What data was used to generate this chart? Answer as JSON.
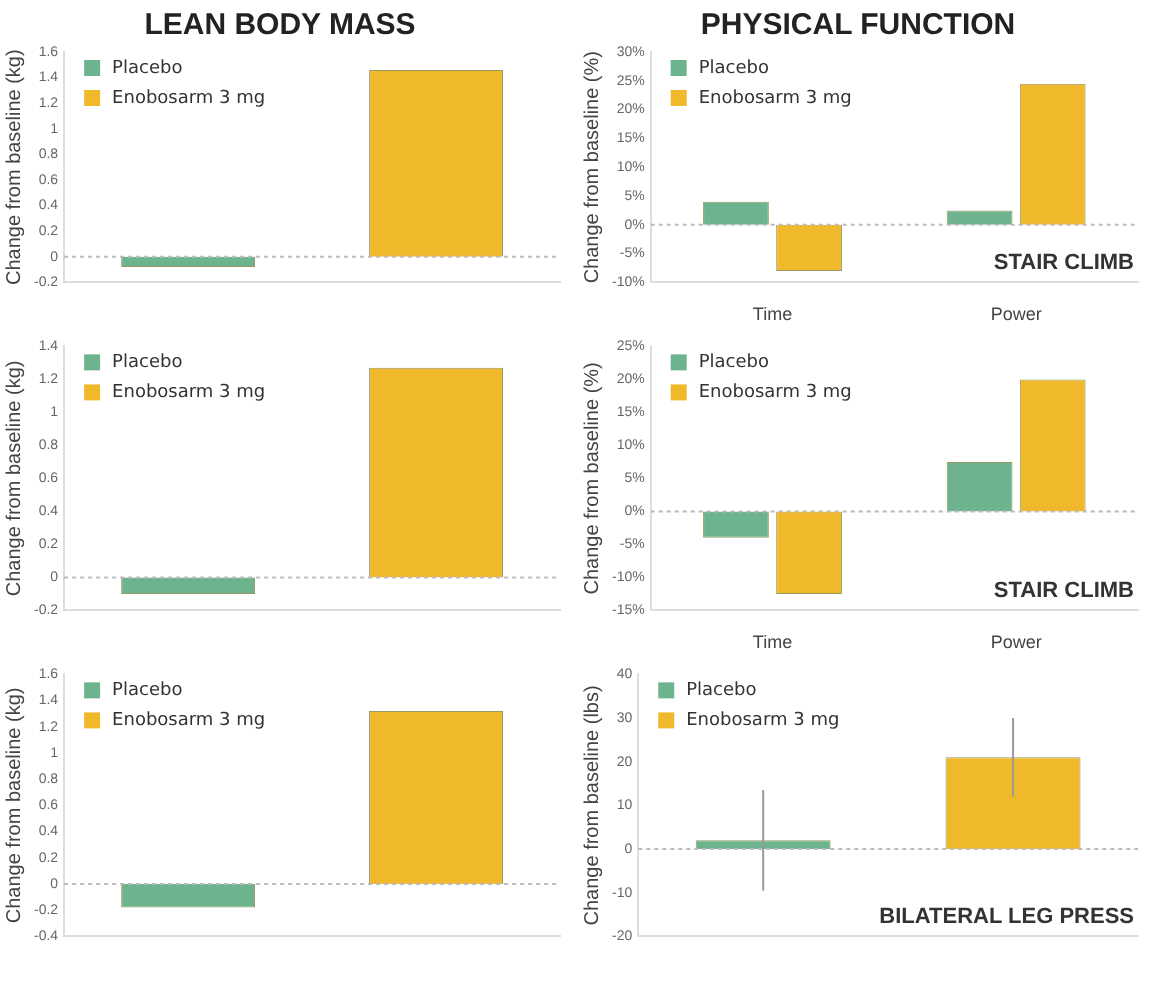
{
  "chart_data": [
    {
      "type": "bar",
      "title": "LEAN BODY MASS",
      "ylabel": "Change from baseline (kg)",
      "categories": [
        null,
        null
      ],
      "legend": "top left",
      "series": [
        {
          "name": "Placebo",
          "color": "#6db38e",
          "values": [
            -0.08,
            null
          ]
        },
        {
          "name": "Enobosarm 3 mg",
          "color": "#f0b92c",
          "values": [
            null,
            1.46
          ]
        }
      ],
      "ylim": [
        -0.2,
        1.6
      ],
      "yticks": [
        -0.2,
        0,
        0.2,
        0.4,
        0.6,
        0.8,
        1,
        1.2,
        1.4,
        1.6
      ]
    },
    {
      "type": "bar",
      "title": "PHYSICAL FUNCTION",
      "ylabel": "Change from baseline (%)",
      "categories": [
        "Time",
        "Power"
      ],
      "legend": "top left",
      "series": [
        {
          "name": "Placebo",
          "color": "#6db38e",
          "values": [
            4,
            2.5
          ]
        },
        {
          "name": "Enobosarm 3 mg",
          "color": "#f0b92c",
          "values": [
            -8,
            24.5
          ]
        }
      ],
      "ylim": [
        -10,
        30
      ],
      "yticks": [
        {
          "value": -10,
          "label": "-10%"
        },
        {
          "value": -5,
          "label": "-5%"
        },
        {
          "value": 0,
          "label": "0%"
        },
        {
          "value": 5,
          "label": "5%"
        },
        {
          "value": 10,
          "label": "10%"
        },
        {
          "value": 15,
          "label": "15%"
        },
        {
          "value": 20,
          "label": "20%"
        },
        {
          "value": 25,
          "label": "25%"
        },
        {
          "value": 30,
          "label": "30%"
        }
      ],
      "annotations": [
        "STAIR CLIMB"
      ]
    },
    {
      "type": "bar",
      "ylabel": "Change from baseline (kg)",
      "categories": [
        null,
        null
      ],
      "legend": "top left",
      "series": [
        {
          "name": "Placebo",
          "color": "#6db38e",
          "values": [
            -0.1,
            null
          ]
        },
        {
          "name": "Enobosarm 3 mg",
          "color": "#f0b92c",
          "values": [
            null,
            1.27
          ]
        }
      ],
      "ylim": [
        -0.2,
        1.4
      ],
      "yticks": [
        -0.2,
        0,
        0.2,
        0.4,
        0.6,
        0.8,
        1,
        1.2,
        1.4
      ]
    },
    {
      "type": "bar",
      "ylabel": "Change from baseline (%)",
      "categories": [
        "Time",
        "Power"
      ],
      "legend": "top left",
      "series": [
        {
          "name": "Placebo",
          "color": "#6db38e",
          "values": [
            -4,
            7.5
          ]
        },
        {
          "name": "Enobosarm 3 mg",
          "color": "#f0b92c",
          "values": [
            -12.5,
            20
          ]
        }
      ],
      "ylim": [
        -15,
        25
      ],
      "yticks": [
        {
          "value": -15,
          "label": "-15%"
        },
        {
          "value": -10,
          "label": "-10%"
        },
        {
          "value": -5,
          "label": "-5%"
        },
        {
          "value": 0,
          "label": "0%"
        },
        {
          "value": 5,
          "label": "5%"
        },
        {
          "value": 10,
          "label": "10%"
        },
        {
          "value": 15,
          "label": "15%"
        },
        {
          "value": 20,
          "label": "20%"
        },
        {
          "value": 25,
          "label": "25%"
        }
      ],
      "annotations": [
        "STAIR CLIMB"
      ]
    },
    {
      "type": "bar",
      "ylabel": "Change from baseline (kg)",
      "categories": [
        null,
        null
      ],
      "legend": "top left",
      "series": [
        {
          "name": "Placebo",
          "color": "#6db38e",
          "values": [
            -0.18,
            null
          ]
        },
        {
          "name": "Enobosarm 3 mg",
          "color": "#f0b92c",
          "values": [
            null,
            1.32
          ]
        }
      ],
      "ylim": [
        -0.4,
        1.6
      ],
      "yticks": [
        -0.4,
        -0.2,
        0,
        0.2,
        0.4,
        0.6,
        0.8,
        1,
        1.2,
        1.4,
        1.6
      ]
    },
    {
      "type": "bar",
      "ylabel": "Change from baseline (lbs)",
      "categories": [
        null,
        null
      ],
      "legend": "top left",
      "series": [
        {
          "name": "Placebo",
          "color": "#6db38e",
          "values": [
            2,
            null
          ],
          "errors": [
            11.5,
            null
          ]
        },
        {
          "name": "Enobosarm 3 mg",
          "color": "#f0b92c",
          "values": [
            null,
            21
          ],
          "errors": [
            null,
            9
          ]
        }
      ],
      "ylim": [
        -20,
        40
      ],
      "yticks": [
        -20,
        -10,
        0,
        10,
        20,
        30,
        40
      ],
      "annotations": [
        "BILATERAL LEG PRESS"
      ]
    }
  ]
}
